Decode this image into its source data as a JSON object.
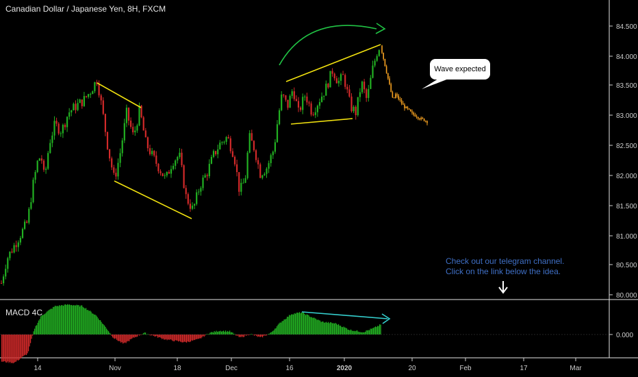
{
  "header": {
    "title": "Canadian Dollar / Japanese Yen, 8H, FXCM"
  },
  "macd": {
    "label": "MACD 4C",
    "zero_label": "0.000"
  },
  "annotations": {
    "bubble": "Wave expected",
    "note_line1": "Check out our telegram channel.",
    "note_line2": "Click on the link below the idea."
  },
  "colors": {
    "up": "#22b122",
    "down": "#d32a2a",
    "projection": "#f7a221",
    "pattern_lines": "#f2e20f",
    "arc": "#21c445",
    "macd_trend": "#35d0cf",
    "note": "#3f6fc5"
  },
  "chart_data": {
    "type": "candlestick",
    "title": "Canadian Dollar / Japanese Yen, 8H, FXCM",
    "y_axis": {
      "ticks": [
        "84.500",
        "84.000",
        "83.500",
        "83.000",
        "82.500",
        "82.000",
        "81.500",
        "81.000",
        "80.500",
        "80.000"
      ],
      "range": [
        79.93,
        84.85
      ]
    },
    "x_axis": {
      "ticks": [
        "14",
        "Nov",
        "18",
        "Dec",
        "16",
        "2020",
        "20",
        "Feb",
        "17",
        "Mar"
      ]
    },
    "price_path": [
      {
        "x": 0,
        "y": 80.1
      },
      {
        "x": 10,
        "y": 80.6
      },
      {
        "x": 25,
        "y": 80.9
      },
      {
        "x": 40,
        "y": 81.2
      },
      {
        "x": 48,
        "y": 81.8
      },
      {
        "x": 55,
        "y": 82.2
      },
      {
        "x": 60,
        "y": 82.3
      },
      {
        "x": 65,
        "y": 81.9
      },
      {
        "x": 72,
        "y": 82.5
      },
      {
        "x": 80,
        "y": 82.8
      },
      {
        "x": 90,
        "y": 82.7
      },
      {
        "x": 100,
        "y": 83.0
      },
      {
        "x": 110,
        "y": 83.1
      },
      {
        "x": 122,
        "y": 83.2
      },
      {
        "x": 132,
        "y": 83.35
      },
      {
        "x": 142,
        "y": 83.55
      },
      {
        "x": 150,
        "y": 83.0
      },
      {
        "x": 158,
        "y": 82.4
      },
      {
        "x": 167,
        "y": 81.9
      },
      {
        "x": 175,
        "y": 82.3
      },
      {
        "x": 185,
        "y": 83.0
      },
      {
        "x": 195,
        "y": 82.6
      },
      {
        "x": 204,
        "y": 83.05
      },
      {
        "x": 213,
        "y": 82.5
      },
      {
        "x": 222,
        "y": 82.3
      },
      {
        "x": 232,
        "y": 82.1
      },
      {
        "x": 242,
        "y": 81.9
      },
      {
        "x": 252,
        "y": 82.2
      },
      {
        "x": 262,
        "y": 82.3
      },
      {
        "x": 272,
        "y": 81.6
      },
      {
        "x": 282,
        "y": 81.4
      },
      {
        "x": 292,
        "y": 81.8
      },
      {
        "x": 302,
        "y": 82.0
      },
      {
        "x": 312,
        "y": 82.3
      },
      {
        "x": 322,
        "y": 82.5
      },
      {
        "x": 332,
        "y": 82.6
      },
      {
        "x": 342,
        "y": 82.3
      },
      {
        "x": 350,
        "y": 81.7
      },
      {
        "x": 358,
        "y": 81.9
      },
      {
        "x": 364,
        "y": 82.6
      },
      {
        "x": 372,
        "y": 82.4
      },
      {
        "x": 380,
        "y": 82.0
      },
      {
        "x": 390,
        "y": 82.1
      },
      {
        "x": 400,
        "y": 82.4
      },
      {
        "x": 406,
        "y": 82.9
      },
      {
        "x": 412,
        "y": 83.3
      },
      {
        "x": 420,
        "y": 83.1
      },
      {
        "x": 428,
        "y": 83.4
      },
      {
        "x": 436,
        "y": 83.0
      },
      {
        "x": 446,
        "y": 83.3
      },
      {
        "x": 456,
        "y": 83.0
      },
      {
        "x": 466,
        "y": 83.2
      },
      {
        "x": 476,
        "y": 83.4
      },
      {
        "x": 486,
        "y": 83.7
      },
      {
        "x": 494,
        "y": 83.5
      },
      {
        "x": 502,
        "y": 83.6
      },
      {
        "x": 512,
        "y": 83.1
      },
      {
        "x": 520,
        "y": 83.0
      },
      {
        "x": 528,
        "y": 83.5
      },
      {
        "x": 536,
        "y": 83.2
      },
      {
        "x": 544,
        "y": 83.7
      },
      {
        "x": 552,
        "y": 84.05
      },
      {
        "x": 556,
        "y": 84.1
      }
    ],
    "projection_path": [
      {
        "x": 556,
        "y": 84.1
      },
      {
        "x": 562,
        "y": 83.8
      },
      {
        "x": 566,
        "y": 83.6
      },
      {
        "x": 570,
        "y": 83.4
      },
      {
        "x": 574,
        "y": 83.2
      },
      {
        "x": 578,
        "y": 83.3
      },
      {
        "x": 584,
        "y": 83.2
      },
      {
        "x": 590,
        "y": 83.1
      },
      {
        "x": 596,
        "y": 83.05
      },
      {
        "x": 602,
        "y": 82.98
      },
      {
        "x": 608,
        "y": 82.95
      },
      {
        "x": 614,
        "y": 82.9
      },
      {
        "x": 620,
        "y": 82.88
      },
      {
        "x": 626,
        "y": 82.84
      }
    ],
    "macd_histogram_shape": [
      {
        "x": 0,
        "v": -0.85
      },
      {
        "x": 20,
        "v": -0.9
      },
      {
        "x": 40,
        "v": -0.6
      },
      {
        "x": 50,
        "v": 0.2
      },
      {
        "x": 60,
        "v": 0.6
      },
      {
        "x": 80,
        "v": 0.9
      },
      {
        "x": 100,
        "v": 0.95
      },
      {
        "x": 120,
        "v": 0.9
      },
      {
        "x": 140,
        "v": 0.6
      },
      {
        "x": 155,
        "v": 0.2
      },
      {
        "x": 165,
        "v": -0.1
      },
      {
        "x": 180,
        "v": -0.3
      },
      {
        "x": 195,
        "v": -0.1
      },
      {
        "x": 210,
        "v": 0.05
      },
      {
        "x": 225,
        "v": -0.05
      },
      {
        "x": 240,
        "v": -0.15
      },
      {
        "x": 255,
        "v": -0.2
      },
      {
        "x": 270,
        "v": -0.25
      },
      {
        "x": 290,
        "v": -0.15
      },
      {
        "x": 305,
        "v": 0.05
      },
      {
        "x": 320,
        "v": 0.12
      },
      {
        "x": 335,
        "v": 0.1
      },
      {
        "x": 350,
        "v": -0.1
      },
      {
        "x": 365,
        "v": 0.02
      },
      {
        "x": 380,
        "v": -0.1
      },
      {
        "x": 395,
        "v": 0.05
      },
      {
        "x": 410,
        "v": 0.4
      },
      {
        "x": 425,
        "v": 0.65
      },
      {
        "x": 440,
        "v": 0.7
      },
      {
        "x": 455,
        "v": 0.55
      },
      {
        "x": 470,
        "v": 0.4
      },
      {
        "x": 490,
        "v": 0.35
      },
      {
        "x": 510,
        "v": 0.15
      },
      {
        "x": 530,
        "v": 0.08
      },
      {
        "x": 545,
        "v": 0.2
      },
      {
        "x": 556,
        "v": 0.32
      }
    ]
  }
}
